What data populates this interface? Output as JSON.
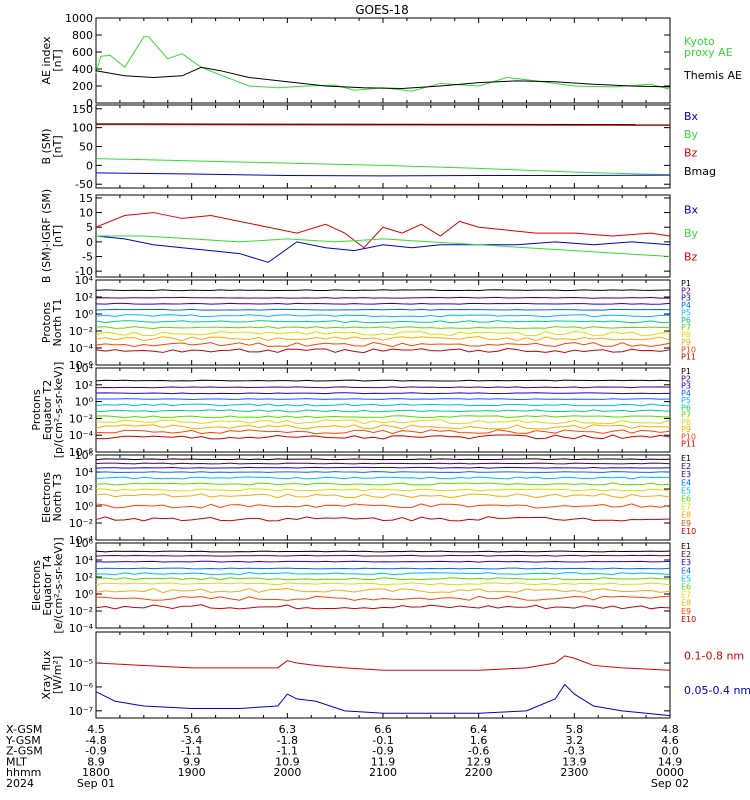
{
  "title": "GOES-18",
  "colors": {
    "black": "#000000",
    "green": "#33dd33",
    "red": "#dd0000",
    "darkred": "#990000",
    "blue": "#0000cc",
    "teal": "#009999",
    "ramp": [
      "#000000",
      "#550055",
      "#2200cc",
      "#0066ff",
      "#00bbee",
      "#00cc88",
      "#55dd00",
      "#dddd00",
      "#ffaa00",
      "#ff4400",
      "#cc0000"
    ]
  },
  "chart_data": [
    {
      "type": "line",
      "id": "ae",
      "ylabel": [
        "AE index",
        "[nT]"
      ],
      "scale": "linear",
      "ylim": [
        0,
        1000
      ],
      "yticks": [
        "0",
        "200",
        "400",
        "600",
        "800",
        "1000"
      ],
      "ytick_values": [
        0,
        200,
        400,
        600,
        800,
        1000
      ],
      "series": [
        {
          "name": "Kyoto proxy AE",
          "color": "#33dd33",
          "x": [
            0,
            0.05,
            0.15,
            0.3,
            0.5,
            0.55,
            0.75,
            0.9,
            1.1,
            1.3,
            1.6,
            1.9,
            2.2,
            2.5,
            2.7,
            3.0,
            3.3,
            3.6,
            4.0,
            4.3,
            4.6,
            5.0,
            5.4,
            5.8,
            6.0
          ],
          "y": [
            350,
            550,
            560,
            420,
            780,
            780,
            520,
            580,
            420,
            330,
            200,
            180,
            200,
            210,
            150,
            180,
            140,
            230,
            200,
            300,
            260,
            200,
            190,
            220,
            160
          ]
        },
        {
          "name": "Themis AE",
          "color": "#000000",
          "x": [
            0,
            0.3,
            0.6,
            0.9,
            1.1,
            1.3,
            1.6,
            2.0,
            2.4,
            2.8,
            3.2,
            3.6,
            4.0,
            4.4,
            4.8,
            5.2,
            5.6,
            6.0
          ],
          "y": [
            380,
            320,
            300,
            320,
            420,
            380,
            300,
            250,
            200,
            180,
            170,
            200,
            240,
            260,
            250,
            220,
            200,
            190
          ]
        }
      ],
      "legend": [
        {
          "text": [
            "Kyoto",
            "proxy AE"
          ],
          "color": "#33dd33"
        },
        {
          "text": [
            "Themis AE"
          ],
          "color": "#000000"
        }
      ]
    },
    {
      "type": "line",
      "id": "bsm",
      "ylabel": [
        "B (SM)",
        "[nT]"
      ],
      "scale": "linear",
      "ylim": [
        -60,
        160
      ],
      "yticks": [
        "-50",
        "0",
        "50",
        "100",
        "150"
      ],
      "ytick_values": [
        -50,
        0,
        50,
        100,
        150
      ],
      "series": [
        {
          "name": "Bmag",
          "color": "#000000",
          "x": [
            0,
            6
          ],
          "y": [
            110,
            108
          ]
        },
        {
          "name": "Bz",
          "color": "#dd0000",
          "x": [
            0,
            6
          ],
          "y": [
            108,
            106
          ]
        },
        {
          "name": "By",
          "color": "#33dd33",
          "x": [
            0,
            1,
            2,
            3,
            4,
            5,
            6
          ],
          "y": [
            18,
            12,
            6,
            0,
            -8,
            -18,
            -25
          ]
        },
        {
          "name": "Bx",
          "color": "#0000cc",
          "x": [
            0,
            1,
            2,
            3,
            4,
            5,
            6
          ],
          "y": [
            -20,
            -23,
            -27,
            -28,
            -27,
            -27,
            -26
          ]
        }
      ],
      "legend": [
        {
          "text": [
            "Bx"
          ],
          "color": "#0000cc"
        },
        {
          "text": [
            "By"
          ],
          "color": "#33dd33"
        },
        {
          "text": [
            "Bz"
          ],
          "color": "#dd0000"
        },
        {
          "text": [
            "Bmag"
          ],
          "color": "#000000"
        }
      ]
    },
    {
      "type": "line",
      "id": "bigrf",
      "ylabel": [
        "B (SM)-IGRF (SM)",
        "[nT]"
      ],
      "scale": "linear",
      "ylim": [
        -12,
        16
      ],
      "yticks": [
        "-10",
        "-5",
        "0",
        "5",
        "10",
        "15"
      ],
      "ytick_values": [
        -10,
        -5,
        0,
        5,
        10,
        15
      ],
      "series": [
        {
          "name": "Bz",
          "color": "#dd0000",
          "x": [
            0,
            0.3,
            0.6,
            0.9,
            1.2,
            1.5,
            1.8,
            2.1,
            2.4,
            2.6,
            2.8,
            3.0,
            3.2,
            3.4,
            3.6,
            3.8,
            4.0,
            4.3,
            4.6,
            5.0,
            5.4,
            5.8,
            6.0
          ],
          "y": [
            5,
            9,
            10,
            8,
            9,
            7,
            5,
            3,
            6,
            3,
            -2,
            5,
            3,
            6,
            2,
            7,
            5,
            4,
            3,
            3,
            2,
            3,
            2
          ]
        },
        {
          "name": "Bx",
          "color": "#0000cc",
          "x": [
            0,
            0.3,
            0.6,
            0.9,
            1.2,
            1.5,
            1.8,
            2.1,
            2.4,
            2.7,
            3.0,
            3.3,
            3.6,
            4.0,
            4.4,
            4.8,
            5.2,
            5.6,
            6.0
          ],
          "y": [
            2,
            1,
            -1,
            -2,
            -3,
            -4,
            -7,
            0,
            -2,
            -3,
            -1,
            -2,
            -1,
            -1,
            -1,
            0,
            -1,
            0,
            -1
          ]
        },
        {
          "name": "By",
          "color": "#33dd33",
          "x": [
            0,
            0.5,
            1.0,
            1.5,
            2.0,
            2.5,
            3.0,
            3.5,
            4.0,
            4.5,
            5.0,
            5.5,
            6.0
          ],
          "y": [
            2,
            2,
            1,
            0,
            1,
            0,
            1,
            0,
            -1,
            -2,
            -3,
            -4,
            -5
          ]
        }
      ],
      "legend": [
        {
          "text": [
            "Bx"
          ],
          "color": "#0000cc"
        },
        {
          "text": [
            "By"
          ],
          "color": "#33dd33"
        },
        {
          "text": [
            "Bz"
          ],
          "color": "#dd0000"
        }
      ]
    },
    {
      "type": "line",
      "id": "protons_t1",
      "ylabel": [
        "Protons",
        "North T1"
      ],
      "scale": "log",
      "ylim": [
        -6,
        4
      ],
      "yticks": [
        "10⁴",
        "10²",
        "10⁰",
        "10⁻²",
        "10⁻⁴",
        "10⁻⁶"
      ],
      "ytick_values": [
        4,
        2,
        0,
        -2,
        -4,
        -6
      ],
      "channels": [
        "P1",
        "P2",
        "P3",
        "P4",
        "P5",
        "P6",
        "P7",
        "P8",
        "P9",
        "P10",
        "P11"
      ],
      "levels": [
        2.8,
        1.9,
        1.2,
        0.5,
        -0.2,
        -0.9,
        -1.6,
        -2.3,
        -2.9,
        -3.6,
        -4.3
      ],
      "legend_channels": true
    },
    {
      "type": "line",
      "id": "protons_t2",
      "ylabel": [
        "Protons",
        "Equator T2",
        "[p/(cm²-s-sr-keV)]"
      ],
      "scale": "log",
      "ylim": [
        -6,
        4
      ],
      "yticks": [
        "10⁴",
        "10²",
        "10⁰",
        "10⁻²",
        "10⁻⁴",
        "10⁻⁶"
      ],
      "ytick_values": [
        4,
        2,
        0,
        -2,
        -4,
        -6
      ],
      "channels": [
        "P1",
        "P2",
        "P3",
        "P4",
        "P5",
        "P6",
        "P7",
        "P8",
        "P9",
        "P10",
        "P11"
      ],
      "levels": [
        2.5,
        1.7,
        1.0,
        0.3,
        -0.4,
        -1.1,
        -1.8,
        -2.4,
        -3.0,
        -3.6,
        -4.2
      ],
      "legend_channels": true
    },
    {
      "type": "line",
      "id": "electrons_t3",
      "ylabel": [
        "Electrons",
        "North T3"
      ],
      "scale": "log",
      "ylim": [
        -4,
        6
      ],
      "yticks": [
        "10⁶",
        "10⁴",
        "10²",
        "10⁰",
        "10⁻²",
        "10⁻⁴"
      ],
      "ytick_values": [
        6,
        4,
        2,
        0,
        -2,
        -4
      ],
      "channels": [
        "E1",
        "E2",
        "E3",
        "E4",
        "E5",
        "E6",
        "E7",
        "E8",
        "E9",
        "E10"
      ],
      "levels": [
        5.5,
        5.0,
        4.5,
        4.0,
        3.3,
        2.6,
        1.9,
        1.2,
        0.0,
        -1.5
      ],
      "legend_channels": true
    },
    {
      "type": "line",
      "id": "electrons_t4",
      "ylabel": [
        "Electrons",
        "Equator T4",
        "[e/(cm²-s-sr-keV)]"
      ],
      "scale": "log",
      "ylim": [
        -4,
        6
      ],
      "yticks": [
        "10⁶",
        "10⁴",
        "10²",
        "10⁰",
        "10⁻²",
        "10⁻⁴"
      ],
      "ytick_values": [
        6,
        4,
        2,
        0,
        -2,
        -4
      ],
      "channels": [
        "E1",
        "E2",
        "E3",
        "E4",
        "E5",
        "E6",
        "E7",
        "E8",
        "E9",
        "E10"
      ],
      "levels": [
        5.0,
        4.5,
        3.8,
        3.0,
        2.4,
        1.8,
        1.2,
        0.4,
        -0.5,
        -1.5
      ],
      "legend_channels": true
    },
    {
      "type": "line",
      "id": "xray",
      "ylabel": [
        "Xray flux",
        "[W/m²]"
      ],
      "scale": "log",
      "ylim": [
        -7.3,
        -3.7
      ],
      "yticks": [
        "10⁻⁵",
        "10⁻⁶",
        "10⁻⁷"
      ],
      "ytick_values": [
        -5,
        -6,
        -7
      ],
      "series": [
        {
          "name": "0.1-0.8 nm",
          "color": "#dd0000",
          "x": [
            0,
            0.5,
            1.0,
            1.5,
            1.9,
            2.0,
            2.1,
            2.3,
            2.6,
            3.0,
            3.5,
            4.0,
            4.5,
            4.8,
            4.9,
            5.0,
            5.2,
            5.5,
            6.0
          ],
          "y": [
            -5.0,
            -5.1,
            -5.2,
            -5.2,
            -5.2,
            -4.9,
            -5.0,
            -5.1,
            -5.2,
            -5.3,
            -5.3,
            -5.3,
            -5.2,
            -5.0,
            -4.7,
            -4.8,
            -5.1,
            -5.2,
            -5.3
          ]
        },
        {
          "name": "0.05-0.4 nm",
          "color": "#0000cc",
          "x": [
            0,
            0.2,
            0.5,
            1.0,
            1.5,
            1.9,
            2.0,
            2.1,
            2.3,
            2.6,
            3.0,
            3.5,
            4.0,
            4.5,
            4.8,
            4.9,
            5.0,
            5.2,
            5.5,
            6.0
          ],
          "y": [
            -6.2,
            -6.6,
            -6.8,
            -6.9,
            -6.9,
            -6.8,
            -6.3,
            -6.5,
            -6.6,
            -7.0,
            -7.1,
            -7.1,
            -7.1,
            -7.0,
            -6.5,
            -5.9,
            -6.3,
            -6.8,
            -7.0,
            -7.2
          ]
        }
      ],
      "legend": [
        {
          "text": [
            "0.1-0.8 nm"
          ],
          "color": "#dd0000"
        },
        {
          "text": [
            "0.05-0.4 nm"
          ],
          "color": "#0000cc"
        }
      ]
    }
  ],
  "xaxis": {
    "range": [
      0,
      6
    ],
    "row_labels": [
      "X-GSM",
      "Y-GSM",
      "Z-GSM",
      "MLT",
      "hhmm",
      "2024"
    ],
    "ticks": [
      {
        "x": 0,
        "rows": [
          "4.5",
          "-4.8",
          "-0.9",
          "8.9",
          "1800",
          "Sep 01"
        ]
      },
      {
        "x": 1,
        "rows": [
          "5.6",
          "-3.4",
          "-1.1",
          "9.9",
          "1900",
          ""
        ]
      },
      {
        "x": 2,
        "rows": [
          "6.3",
          "-1.8",
          "-1.1",
          "10.9",
          "2000",
          ""
        ]
      },
      {
        "x": 3,
        "rows": [
          "6.6",
          "-0.1",
          "-0.9",
          "11.9",
          "2100",
          ""
        ]
      },
      {
        "x": 4,
        "rows": [
          "6.4",
          "1.6",
          "-0.6",
          "12.9",
          "2200",
          ""
        ]
      },
      {
        "x": 5,
        "rows": [
          "5.8",
          "3.2",
          "-0.3",
          "13.9",
          "2300",
          ""
        ]
      },
      {
        "x": 6,
        "rows": [
          "4.8",
          "4.6",
          "0.0",
          "14.9",
          "0000",
          "Sep 02"
        ]
      }
    ]
  }
}
